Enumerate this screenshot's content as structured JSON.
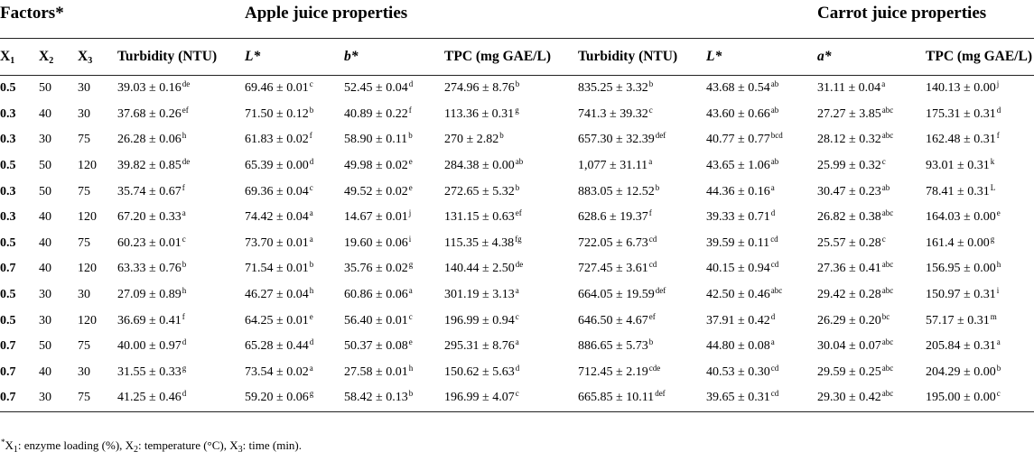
{
  "header": {
    "factors": "Factors*",
    "apple_group": "Apple juice properties",
    "carrot_group": "Carrot juice properties",
    "columns": [
      "X1",
      "X2",
      "X3",
      "Turbidity (NTU)",
      "L*",
      "b*",
      "TPC (mg GAE/L)",
      "Turbidity (NTU)",
      "L*",
      "a*",
      "TPC (mg GAE/L)"
    ]
  },
  "rows": [
    {
      "cells": [
        "0.5",
        "50",
        "30",
        "39.03 ± 0.16",
        "69.46 ± 0.01",
        "52.45 ± 0.04",
        "274.96 ± 8.76",
        "835.25 ± 3.32",
        "43.68 ± 0.54",
        "31.11 ± 0.04",
        "140.13 ± 0.00"
      ],
      "sups": [
        "",
        "",
        "",
        "de",
        "c",
        "d",
        "b",
        "b",
        "ab",
        "a",
        "j"
      ]
    },
    {
      "cells": [
        "0.3",
        "40",
        "30",
        "37.68 ± 0.26",
        "71.50 ± 0.12",
        "40.89 ± 0.22",
        "113.36 ± 0.31",
        "741.3 ± 39.32",
        "43.60 ± 0.66",
        "27.27 ± 3.85",
        "175.31 ± 0.31"
      ],
      "sups": [
        "",
        "",
        "",
        "ef",
        "b",
        "f",
        "g",
        "c",
        "ab",
        "abc",
        "d"
      ]
    },
    {
      "cells": [
        "0.3",
        "30",
        "75",
        "26.28 ± 0.06",
        "61.83 ± 0.02",
        "58.90 ± 0.11",
        "270 ± 2.82",
        "657.30 ± 32.39",
        "40.77 ± 0.77",
        "28.12 ± 0.32",
        "162.48 ± 0.31"
      ],
      "sups": [
        "",
        "",
        "",
        "h",
        "f",
        "b",
        "b",
        "def",
        "bcd",
        "abc",
        "f"
      ]
    },
    {
      "cells": [
        "0.5",
        "50",
        "120",
        "39.82 ± 0.85",
        "65.39 ± 0.00",
        "49.98 ± 0.02",
        "284.38 ± 0.00",
        "1,077 ± 31.11",
        "43.65 ± 1.06",
        "25.99 ± 0.32",
        "93.01 ± 0.31"
      ],
      "sups": [
        "",
        "",
        "",
        "de",
        "d",
        "e",
        "ab",
        "a",
        "ab",
        "c",
        "k"
      ]
    },
    {
      "cells": [
        "0.3",
        "50",
        "75",
        "35.74 ± 0.67",
        "69.36 ± 0.04",
        "49.52 ± 0.02",
        "272.65 ± 5.32",
        "883.05 ± 12.52",
        "44.36 ± 0.16",
        "30.47 ± 0.23",
        "78.41 ± 0.31"
      ],
      "sups": [
        "",
        "",
        "",
        "f",
        "c",
        "e",
        "b",
        "b",
        "a",
        "ab",
        "L"
      ]
    },
    {
      "cells": [
        "0.3",
        "40",
        "120",
        "67.20 ± 0.33",
        "74.42 ± 0.04",
        "14.67 ± 0.01",
        "131.15 ± 0.63",
        "628.6 ± 19.37",
        "39.33 ± 0.71",
        "26.82 ± 0.38",
        "164.03 ± 0.00"
      ],
      "sups": [
        "",
        "",
        "",
        "a",
        "a",
        "j",
        "ef",
        "f",
        "d",
        "abc",
        "e"
      ]
    },
    {
      "cells": [
        "0.5",
        "40",
        "75",
        "60.23 ± 0.01",
        "73.70 ± 0.01",
        "19.60 ± 0.06",
        "115.35 ± 4.38",
        "722.05 ± 6.73",
        "39.59 ± 0.11",
        "25.57 ± 0.28",
        "161.4 ± 0.00"
      ],
      "sups": [
        "",
        "",
        "",
        "c",
        "a",
        "i",
        "fg",
        "cd",
        "cd",
        "c",
        "g"
      ]
    },
    {
      "cells": [
        "0.7",
        "40",
        "120",
        "63.33 ± 0.76",
        "71.54 ± 0.01",
        "35.76 ± 0.02",
        "140.44 ± 2.50",
        "727.45 ± 3.61",
        "40.15 ± 0.94",
        "27.36 ± 0.41",
        "156.95 ± 0.00"
      ],
      "sups": [
        "",
        "",
        "",
        "b",
        "b",
        "g",
        "de",
        "cd",
        "cd",
        "abc",
        "h"
      ]
    },
    {
      "cells": [
        "0.5",
        "30",
        "30",
        "27.09 ± 0.89",
        "46.27 ± 0.04",
        "60.86 ± 0.06",
        "301.19 ± 3.13",
        "664.05 ± 19.59",
        "42.50 ± 0.46",
        "29.42 ± 0.28",
        "150.97 ± 0.31"
      ],
      "sups": [
        "",
        "",
        "",
        "h",
        "h",
        "a",
        "a",
        "def",
        "abc",
        "abc",
        "i"
      ]
    },
    {
      "cells": [
        "0.5",
        "30",
        "120",
        "36.69 ± 0.41",
        "64.25 ± 0.01",
        "56.40 ± 0.01",
        "196.99 ± 0.94",
        "646.50 ± 4.67",
        "37.91 ± 0.42",
        "26.29 ± 0.20",
        "57.17 ± 0.31"
      ],
      "sups": [
        "",
        "",
        "",
        "f",
        "e",
        "c",
        "c",
        "ef",
        "d",
        "bc",
        "m"
      ]
    },
    {
      "cells": [
        "0.7",
        "50",
        "75",
        "40.00 ± 0.97",
        "65.28 ± 0.44",
        "50.37 ± 0.08",
        "295.31 ± 8.76",
        "886.65 ± 5.73",
        "44.80 ± 0.08",
        "30.04 ± 0.07",
        "205.84 ± 0.31"
      ],
      "sups": [
        "",
        "",
        "",
        "d",
        "d",
        "e",
        "a",
        "b",
        "a",
        "abc",
        "a"
      ]
    },
    {
      "cells": [
        "0.7",
        "40",
        "30",
        "31.55 ± 0.33",
        "73.54 ± 0.02",
        "27.58 ± 0.01",
        "150.62 ± 5.63",
        "712.45 ± 2.19",
        "40.53 ± 0.30",
        "29.59 ± 0.25",
        "204.29 ± 0.00"
      ],
      "sups": [
        "",
        "",
        "",
        "g",
        "a",
        "h",
        "d",
        "cde",
        "cd",
        "abc",
        "b"
      ]
    },
    {
      "cells": [
        "0.7",
        "30",
        "75",
        "41.25 ± 0.46",
        "59.20 ± 0.06",
        "58.42 ± 0.13",
        "196.99 ± 4.07",
        "665.85 ± 10.11",
        "39.65 ± 0.31",
        "29.30 ± 0.42",
        "195.00 ± 0.00"
      ],
      "sups": [
        "",
        "",
        "",
        "d",
        "g",
        "b",
        "c",
        "def",
        "cd",
        "abc",
        "c"
      ]
    }
  ],
  "footnote": "*X1: enzyme loading (%), X2: temperature (°C), X3: time (min)."
}
